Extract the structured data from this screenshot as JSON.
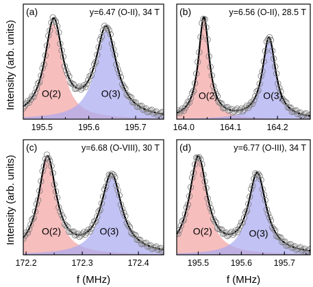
{
  "ylabel": "Intensity (arb. units)",
  "xlabel": "f (MHz)",
  "colors": {
    "peak_o2": "#f4a3a3",
    "peak_o3": "#a8a8f0",
    "fit": "#000000",
    "points": "#808080"
  },
  "chart_data": [
    {
      "type": "line",
      "label": "(a)",
      "title": "y=6.47 (O-II), 34 T",
      "xlim": [
        195.46,
        195.76
      ],
      "xticks": [
        "195.5",
        "195.6",
        "195.7"
      ],
      "xtick_values": [
        195.5,
        195.6,
        195.7
      ],
      "peaks": [
        {
          "name": "O(2)",
          "center": 195.525,
          "amplitude": 0.95,
          "width": 0.023,
          "label_x": 195.52,
          "label_y": 0.22
        },
        {
          "name": "O(3)",
          "center": 195.637,
          "amplitude": 0.88,
          "width": 0.027,
          "label_x": 195.647,
          "label_y": 0.22
        }
      ],
      "show_xlabel": false
    },
    {
      "type": "line",
      "label": "(b)",
      "title": "y=6.56 (O-II), 28.5 T",
      "xlim": [
        163.985,
        164.27
      ],
      "xticks": [
        "164.0",
        "164.1",
        "164.2"
      ],
      "xtick_values": [
        164.0,
        164.1,
        164.2
      ],
      "peaks": [
        {
          "name": "O(2)",
          "center": 164.043,
          "amplitude": 1.0,
          "width": 0.014,
          "label_x": 164.052,
          "label_y": 0.2
        },
        {
          "name": "O(3)",
          "center": 164.182,
          "amplitude": 0.8,
          "width": 0.017,
          "label_x": 164.19,
          "label_y": 0.2
        }
      ],
      "show_xlabel": false
    },
    {
      "type": "line",
      "label": "(c)",
      "title": "y=6.68 (O-VIII), 30 T",
      "xlim": [
        172.195,
        172.445
      ],
      "xticks": [
        "172.2",
        "172.3",
        "172.4"
      ],
      "xtick_values": [
        172.2,
        172.3,
        172.4
      ],
      "peaks": [
        {
          "name": "O(2)",
          "center": 172.238,
          "amplitude": 0.95,
          "width": 0.019,
          "label_x": 172.245,
          "label_y": 0.2
        },
        {
          "name": "O(3)",
          "center": 172.352,
          "amplitude": 0.78,
          "width": 0.022,
          "label_x": 172.348,
          "label_y": 0.2
        }
      ],
      "show_xlabel": true
    },
    {
      "type": "line",
      "label": "(d)",
      "title": "y=6.77 (O-III), 34 T",
      "xlim": [
        195.45,
        195.76
      ],
      "xticks": [
        "195.5",
        "195.6",
        "195.7"
      ],
      "xtick_values": [
        195.5,
        195.6,
        195.7
      ],
      "peaks": [
        {
          "name": "O(2)",
          "center": 195.5,
          "amplitude": 0.95,
          "width": 0.025,
          "label_x": 195.51,
          "label_y": 0.2
        },
        {
          "name": "O(3)",
          "center": 195.637,
          "amplitude": 0.78,
          "width": 0.025,
          "label_x": 195.64,
          "label_y": 0.18
        }
      ],
      "show_xlabel": true
    }
  ]
}
